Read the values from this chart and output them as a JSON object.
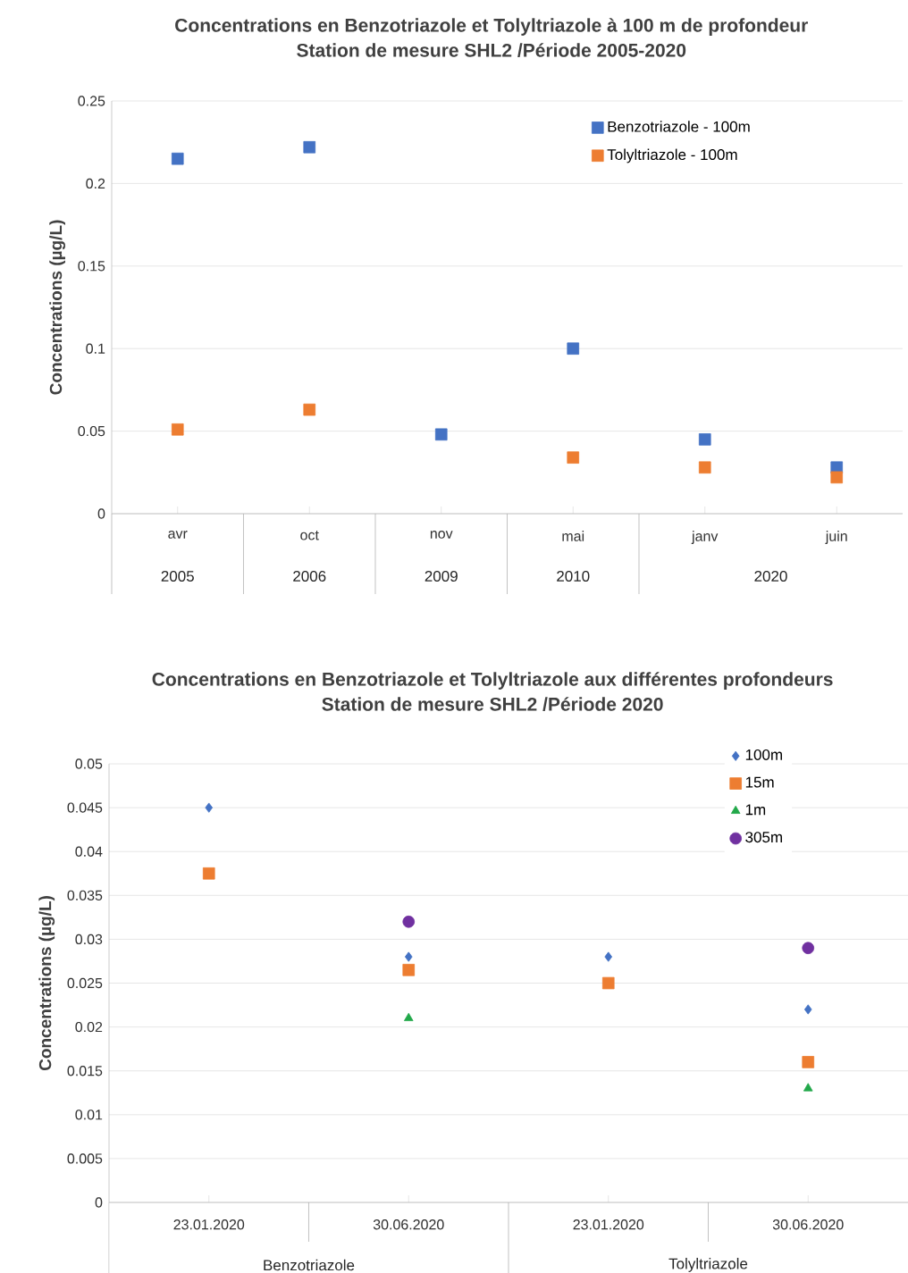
{
  "chart_data": [
    {
      "type": "scatter",
      "title": "Concentrations en Benzotriazole et Tolyltriazole à 100 m de profondeur",
      "subtitle": "Station de mesure SHL2 /Période 2005-2020",
      "ylabel": "Concentrations (µg/L)",
      "categories": [
        "avr",
        "oct",
        "nov",
        "mai",
        "janv",
        "juin"
      ],
      "annotations": [
        "2005",
        "2006",
        "2009",
        "2010",
        "2020"
      ],
      "series": [
        {
          "name": "Benzotriazole - 100m",
          "color": "#4472c4",
          "values": [
            0.215,
            0.222,
            0.048,
            0.1,
            0.045,
            0.028
          ]
        },
        {
          "name": "Tolyltriazole - 100m",
          "color": "#ed7d31",
          "values": [
            0.051,
            0.063,
            null,
            0.034,
            0.028,
            0.022
          ]
        }
      ],
      "marker": "square",
      "ylim": [
        0,
        0.25
      ],
      "yticks": [
        0,
        0.05,
        0.1,
        0.15,
        0.2,
        0.25
      ],
      "grid": "y",
      "legend": "top right"
    },
    {
      "type": "scatter",
      "title": "Concentrations en Benzotriazole et Tolyltriazole aux différentes profondeurs",
      "subtitle": "Station de mesure SHL2 /Période 2020",
      "ylabel": "Concentrations (µg/L)",
      "categories": [
        "23.01.2020",
        "30.06.2020",
        "23.01.2020",
        "30.06.2020"
      ],
      "annotations": [
        "Benzotriazole",
        "Tolyltriazole"
      ],
      "series": [
        {
          "name": "100m",
          "color": "#4472c4",
          "marker": "diamond",
          "values": [
            0.045,
            0.028,
            0.028,
            0.022
          ]
        },
        {
          "name": "15m",
          "color": "#ed7d31",
          "marker": "square",
          "values": [
            0.0375,
            0.0265,
            0.025,
            0.016
          ]
        },
        {
          "name": "1m",
          "color": "#22a84a",
          "marker": "triangle",
          "values": [
            null,
            0.021,
            null,
            0.013
          ]
        },
        {
          "name": "305m",
          "color": "#7030a0",
          "marker": "circle",
          "values": [
            null,
            0.032,
            null,
            0.029
          ]
        }
      ],
      "ylim": [
        0,
        0.05
      ],
      "yticks": [
        0,
        0.005,
        0.01,
        0.015,
        0.02,
        0.025,
        0.03,
        0.035,
        0.04,
        0.045,
        0.05
      ],
      "grid": "y",
      "legend": "top right"
    }
  ]
}
